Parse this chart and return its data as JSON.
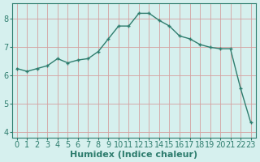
{
  "x": [
    0,
    1,
    2,
    3,
    4,
    5,
    6,
    7,
    8,
    9,
    10,
    11,
    12,
    13,
    14,
    15,
    16,
    17,
    18,
    19,
    20,
    21,
    22,
    23
  ],
  "y": [
    6.25,
    6.15,
    6.25,
    6.35,
    6.6,
    6.45,
    6.55,
    6.6,
    6.85,
    7.3,
    7.75,
    7.75,
    8.2,
    8.2,
    7.95,
    7.75,
    7.4,
    7.3,
    7.1,
    7.0,
    6.95,
    6.95,
    5.55,
    4.35
  ],
  "line_color": "#2e7d6e",
  "marker": "+",
  "marker_size": 3,
  "bg_color": "#d6f0ee",
  "grid_color": "#d4a0a0",
  "xlabel": "Humidex (Indice chaleur)",
  "xlim": [
    -0.5,
    23.5
  ],
  "ylim": [
    3.8,
    8.55
  ],
  "yticks": [
    4,
    5,
    6,
    7,
    8
  ],
  "xticks": [
    0,
    1,
    2,
    3,
    4,
    5,
    6,
    7,
    8,
    9,
    10,
    11,
    12,
    13,
    14,
    15,
    16,
    17,
    18,
    19,
    20,
    21,
    22,
    23
  ],
  "tick_color": "#2e7d6e",
  "axis_color": "#2e7d6e",
  "xlabel_fontsize": 8,
  "tick_fontsize": 7,
  "linewidth": 1.0,
  "markeredgewidth": 1.0
}
